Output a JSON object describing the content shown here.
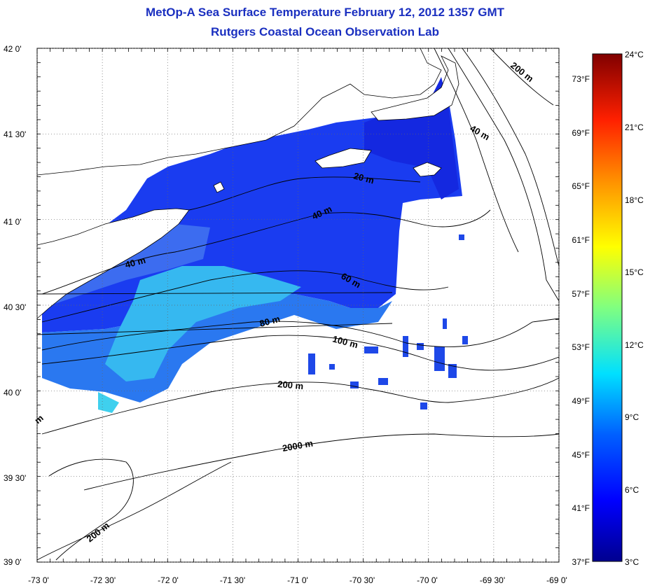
{
  "header": {
    "title": "MetOp-A Sea Surface Temperature February 12, 2012 1357 GMT",
    "subtitle": "Rutgers Coastal Ocean Observation Lab"
  },
  "map": {
    "lat_labels": [
      "42 0'",
      "41 30'",
      "41 0'",
      "40 30'",
      "40 0'",
      "39 30'",
      "39 0'"
    ],
    "lon_labels": [
      "-73 0'",
      "-72 30'",
      "-72 0'",
      "-71 30'",
      "-71 0'",
      "-70 30'",
      "-70 0'",
      "-69 30'",
      "-69 0'"
    ],
    "contour_labels": [
      "200 m",
      "40 m",
      "20 m",
      "40 m",
      "40 m",
      "60 m",
      "80 m",
      "100 m",
      "200 m",
      "2000 m",
      "200 m",
      "m"
    ],
    "colors": {
      "land_outline": "#000000",
      "water_background": "#ffffff"
    }
  },
  "colorbar": {
    "celsius_labels": [
      "24°C",
      "21°C",
      "18°C",
      "15°C",
      "12°C",
      "9°C",
      "6°C",
      "3°C"
    ],
    "fahrenheit_labels": [
      "73°F",
      "69°F",
      "65°F",
      "61°F",
      "57°F",
      "53°F",
      "49°F",
      "45°F",
      "41°F",
      "37°F"
    ],
    "colors": [
      "#00008f",
      "#0000ff",
      "#0080ff",
      "#00ffff",
      "#80ff80",
      "#ffff00",
      "#ff8000",
      "#ff0000",
      "#800000"
    ]
  }
}
